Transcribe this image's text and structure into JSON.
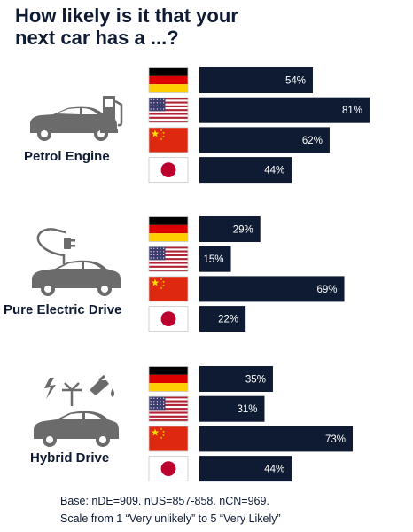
{
  "title_line1": "How likely is it that your",
  "title_line2": "next car has a ...?",
  "footnote_line1": "Base: nDE=909. nUS=857-858. nCN=969.",
  "footnote_line2": "Scale from 1 “Very unlikely” to 5 “Very Likely”",
  "colors": {
    "bar": "#0e1b33",
    "bar_text": "#ffffff",
    "icon_gray": "#6b6b6b"
  },
  "chart_data": {
    "type": "bar",
    "orientation": "horizontal",
    "countries": [
      "Germany",
      "USA",
      "China",
      "Japan"
    ],
    "groups": [
      {
        "label": "Petrol Engine",
        "icon": "petrol-car-icon",
        "values": [
          54,
          81,
          62,
          44
        ],
        "value_labels": [
          "54%",
          "81%",
          "62%",
          "44%"
        ]
      },
      {
        "label": "Pure Electric Drive",
        "icon": "electric-car-icon",
        "values": [
          29,
          15,
          69,
          22
        ],
        "value_labels": [
          "29%",
          "15%",
          "69%",
          "22%"
        ]
      },
      {
        "label": "Hybrid Drive",
        "icon": "hybrid-car-icon",
        "values": [
          35,
          31,
          73,
          44
        ],
        "value_labels": [
          "35%",
          "31%",
          "73%",
          "44%"
        ]
      }
    ],
    "unit": "%",
    "xlim": [
      0,
      100
    ],
    "grid": false,
    "legend": "none"
  }
}
